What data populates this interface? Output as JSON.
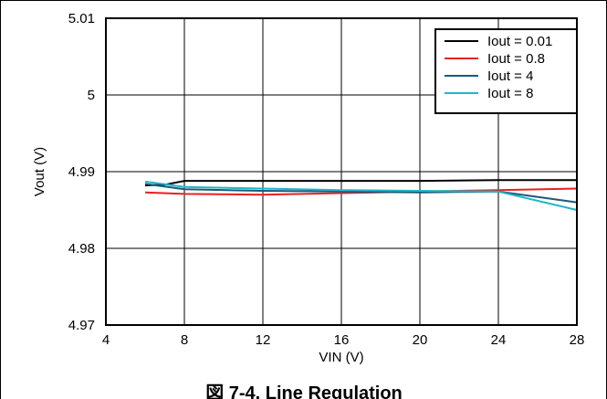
{
  "caption": "図 7-4. Line Regulation",
  "chart_data": {
    "type": "line",
    "xlabel": "VIN (V)",
    "ylabel": "Vout (V)",
    "xlim": [
      4,
      28
    ],
    "ylim": [
      4.97,
      5.01
    ],
    "x_ticks": [
      4,
      8,
      12,
      16,
      20,
      24,
      28
    ],
    "y_ticks": [
      4.97,
      4.98,
      4.99,
      5,
      5.01
    ],
    "x_tick_labels": [
      "4",
      "8",
      "12",
      "16",
      "20",
      "24",
      "28"
    ],
    "y_tick_labels": [
      "4.97",
      "4.98",
      "4.99",
      "5",
      "5.01"
    ],
    "grid": true,
    "legend_position": "top-right",
    "series": [
      {
        "name": "Iout = 0.01",
        "color": "#000000",
        "x": [
          6,
          7,
          8,
          12,
          16,
          20,
          24,
          28
        ],
        "y": [
          4.9882,
          4.9883,
          4.9888,
          4.9888,
          4.9888,
          4.9888,
          4.9889,
          4.9889
        ]
      },
      {
        "name": "Iout = 0.8",
        "color": "#e8211e",
        "x": [
          6,
          8,
          12,
          16,
          20,
          24,
          28
        ],
        "y": [
          4.9873,
          4.9871,
          4.987,
          4.9872,
          4.9874,
          4.9876,
          4.9878
        ]
      },
      {
        "name": "Iout = 4",
        "color": "#1b5a7a",
        "x": [
          6,
          8,
          12,
          16,
          20,
          24,
          28
        ],
        "y": [
          4.9884,
          4.9877,
          4.9875,
          4.9874,
          4.9873,
          4.9874,
          4.986
        ]
      },
      {
        "name": "Iout = 8",
        "color": "#22b5c8",
        "x": [
          6,
          8,
          12,
          16,
          20,
          24,
          28
        ],
        "y": [
          4.9887,
          4.988,
          4.9878,
          4.9876,
          4.9875,
          4.9874,
          4.985
        ]
      }
    ]
  }
}
